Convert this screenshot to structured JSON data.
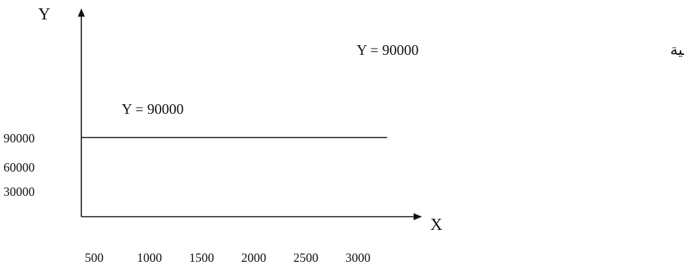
{
  "chart_data": {
    "type": "line",
    "title": "",
    "xlabel": "X",
    "ylabel": "Y",
    "x_ticks": [
      "500",
      "1000",
      "1500",
      "2000",
      "2500",
      "3000"
    ],
    "y_ticks": [
      "30000",
      "60000",
      "90000"
    ],
    "series": [
      {
        "name": "Y = 90000",
        "x": [
          0,
          3000
        ],
        "y": [
          90000,
          90000
        ]
      }
    ],
    "annotations": [
      "معادلة التكاليف الثابتة الإجمالية",
      "Y = 90000"
    ],
    "grid": false
  }
}
